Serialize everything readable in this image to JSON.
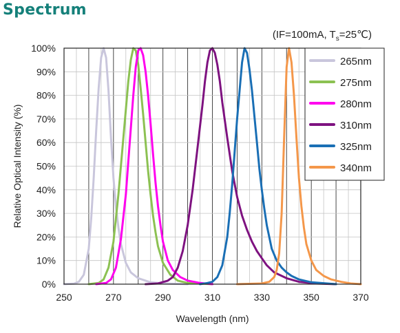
{
  "heading": "Spectrum",
  "chart_data": {
    "type": "line",
    "title": "",
    "condition": {
      "prefix": "(IF=100mA, T",
      "subscript": "s",
      "suffix": "=25℃)"
    },
    "xlabel": "Wavelength  (nm)",
    "ylabel": "Relative  Optical Intensity  (%)",
    "xlim": [
      250,
      370
    ],
    "ylim": [
      0,
      100
    ],
    "x_ticks": [
      250,
      270,
      290,
      310,
      330,
      350,
      370
    ],
    "x_tick_labels": [
      "250",
      "270",
      "290",
      "310",
      "330",
      "350",
      "370"
    ],
    "y_ticks": [
      0,
      10,
      20,
      30,
      40,
      50,
      60,
      70,
      80,
      90,
      100
    ],
    "y_tick_labels": [
      "0%",
      "10%",
      "20%",
      "30%",
      "40%",
      "50%",
      "60%",
      "70%",
      "80%",
      "90%",
      "100%"
    ],
    "grid": true,
    "legend_position": "top-right",
    "series": [
      {
        "name": "265nm",
        "color": "#c9c6dc",
        "points": [
          [
            250,
            0
          ],
          [
            254,
            0.2
          ],
          [
            256,
            1
          ],
          [
            258,
            4
          ],
          [
            260,
            15
          ],
          [
            261,
            28
          ],
          [
            262,
            45
          ],
          [
            263,
            65
          ],
          [
            264,
            83
          ],
          [
            265,
            96
          ],
          [
            266,
            100
          ],
          [
            267,
            96
          ],
          [
            268,
            82
          ],
          [
            269,
            62
          ],
          [
            270,
            45
          ],
          [
            271,
            33
          ],
          [
            272,
            24
          ],
          [
            273,
            17
          ],
          [
            275,
            9
          ],
          [
            277,
            5
          ],
          [
            280,
            2.5
          ],
          [
            285,
            0.8
          ],
          [
            290,
            0.3
          ],
          [
            300,
            0
          ]
        ]
      },
      {
        "name": "275nm",
        "color": "#8cc152",
        "points": [
          [
            260,
            0
          ],
          [
            264,
            0.5
          ],
          [
            266,
            2
          ],
          [
            268,
            7
          ],
          [
            270,
            18
          ],
          [
            272,
            38
          ],
          [
            274,
            62
          ],
          [
            275,
            74
          ],
          [
            276,
            86
          ],
          [
            277,
            95
          ],
          [
            278,
            100
          ],
          [
            279,
            99
          ],
          [
            280,
            93
          ],
          [
            281,
            83
          ],
          [
            282,
            72
          ],
          [
            283,
            60
          ],
          [
            284,
            48
          ],
          [
            285,
            38
          ],
          [
            286,
            29
          ],
          [
            287,
            22
          ],
          [
            288,
            16
          ],
          [
            290,
            9
          ],
          [
            293,
            4
          ],
          [
            296,
            1.5
          ],
          [
            300,
            0.5
          ],
          [
            310,
            0
          ]
        ]
      },
      {
        "name": "280nm",
        "color": "#ff00ee",
        "points": [
          [
            263,
            0
          ],
          [
            267,
            0.5
          ],
          [
            269,
            2
          ],
          [
            271,
            7
          ],
          [
            273,
            19
          ],
          [
            275,
            38
          ],
          [
            276,
            52
          ],
          [
            277,
            66
          ],
          [
            278,
            80
          ],
          [
            279,
            92
          ],
          [
            280,
            99
          ],
          [
            281,
            100
          ],
          [
            282,
            97
          ],
          [
            283,
            90
          ],
          [
            284,
            80
          ],
          [
            285,
            68
          ],
          [
            286,
            55
          ],
          [
            287,
            43
          ],
          [
            288,
            33
          ],
          [
            289,
            25
          ],
          [
            290,
            18
          ],
          [
            292,
            10
          ],
          [
            294,
            6
          ],
          [
            297,
            3
          ],
          [
            300,
            1.5
          ],
          [
            305,
            0.5
          ],
          [
            310,
            0
          ]
        ]
      },
      {
        "name": "310nm",
        "color": "#7e1280",
        "points": [
          [
            283,
            0
          ],
          [
            288,
            0.3
          ],
          [
            292,
            1.5
          ],
          [
            294,
            3
          ],
          [
            296,
            7
          ],
          [
            298,
            14
          ],
          [
            300,
            25
          ],
          [
            302,
            40
          ],
          [
            304,
            58
          ],
          [
            306,
            76
          ],
          [
            307,
            86
          ],
          [
            308,
            94
          ],
          [
            309,
            99
          ],
          [
            310,
            100
          ],
          [
            311,
            98
          ],
          [
            312,
            93
          ],
          [
            313,
            86
          ],
          [
            314,
            77
          ],
          [
            316,
            62
          ],
          [
            318,
            48
          ],
          [
            320,
            37
          ],
          [
            322,
            29
          ],
          [
            324,
            23
          ],
          [
            326,
            18
          ],
          [
            328,
            14
          ],
          [
            330,
            11
          ],
          [
            332,
            8
          ],
          [
            335,
            5
          ],
          [
            340,
            2.5
          ],
          [
            345,
            1
          ],
          [
            352,
            0.3
          ],
          [
            360,
            0
          ]
        ]
      },
      {
        "name": "325nm",
        "color": "#1a6fb5",
        "points": [
          [
            305,
            0
          ],
          [
            308,
            0.5
          ],
          [
            310,
            1
          ],
          [
            312,
            3
          ],
          [
            314,
            8
          ],
          [
            316,
            20
          ],
          [
            317,
            30
          ],
          [
            318,
            42
          ],
          [
            319,
            56
          ],
          [
            320,
            70
          ],
          [
            321,
            82
          ],
          [
            322,
            94
          ],
          [
            323,
            100
          ],
          [
            324,
            98
          ],
          [
            325,
            91
          ],
          [
            326,
            82
          ],
          [
            327,
            71
          ],
          [
            328,
            60
          ],
          [
            329,
            49
          ],
          [
            330,
            40
          ],
          [
            331,
            32
          ],
          [
            332,
            25
          ],
          [
            333,
            20
          ],
          [
            334,
            15
          ],
          [
            336,
            10
          ],
          [
            338,
            7
          ],
          [
            340,
            5
          ],
          [
            342,
            3.5
          ],
          [
            345,
            2
          ],
          [
            350,
            0.8
          ],
          [
            360,
            0
          ]
        ]
      },
      {
        "name": "340nm",
        "color": "#f4974a",
        "points": [
          [
            320,
            0
          ],
          [
            330,
            0.3
          ],
          [
            333,
            1
          ],
          [
            335,
            3
          ],
          [
            336,
            6
          ],
          [
            337,
            13
          ],
          [
            338,
            30
          ],
          [
            339,
            62
          ],
          [
            340,
            92
          ],
          [
            341,
            100
          ],
          [
            342,
            94
          ],
          [
            343,
            80
          ],
          [
            344,
            62
          ],
          [
            345,
            45
          ],
          [
            346,
            33
          ],
          [
            347,
            24
          ],
          [
            348,
            17
          ],
          [
            350,
            10
          ],
          [
            352,
            6
          ],
          [
            355,
            3.5
          ],
          [
            358,
            2
          ],
          [
            362,
            1
          ],
          [
            366,
            0.3
          ],
          [
            370,
            0
          ]
        ]
      }
    ]
  }
}
